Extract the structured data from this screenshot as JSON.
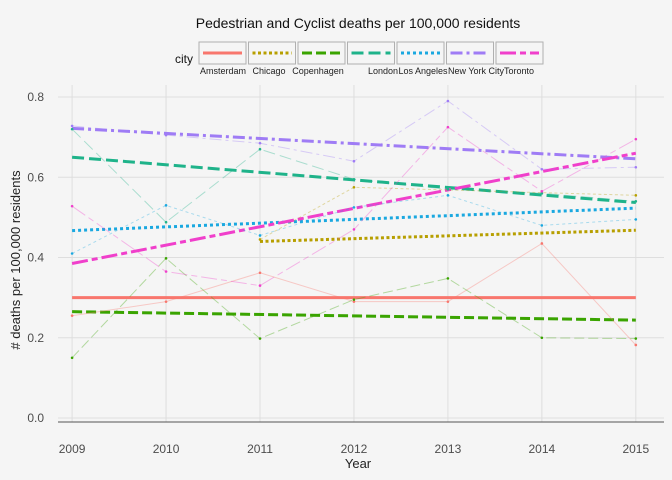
{
  "chart_data": {
    "type": "line",
    "title": "Pedestrian and Cyclist deaths per 100,000 residents",
    "xlabel": "Year",
    "ylabel": "# deaths per 100,000 residents",
    "xlim": [
      2008.85,
      2015.3
    ],
    "ylim": [
      -0.01,
      0.83
    ],
    "x_ticks": [
      2009,
      2010,
      2011,
      2012,
      2013,
      2014,
      2015
    ],
    "y_ticks": [
      0.0,
      0.2,
      0.4,
      0.6,
      0.8
    ],
    "y_tick_labels": [
      "0.0",
      "0.2",
      "0.4",
      "0.6",
      "0.8"
    ],
    "grid": true,
    "legend": {
      "title": "city",
      "placement": "top"
    },
    "series": [
      {
        "name": "Amsterdam",
        "color": "#F8766D",
        "dash": "solid",
        "points": [
          [
            2009,
            0.255
          ],
          [
            2010,
            0.29
          ],
          [
            2011,
            0.362
          ],
          [
            2012,
            0.29
          ],
          [
            2013,
            0.29
          ],
          [
            2014,
            0.435
          ],
          [
            2015,
            0.182
          ]
        ],
        "trend": [
          [
            2009,
            0.3
          ],
          [
            2015,
            0.3
          ]
        ]
      },
      {
        "name": "Chicago",
        "color": "#B79F00",
        "dash": "dotted",
        "points": [
          [
            2011,
            0.445
          ],
          [
            2012,
            0.575
          ],
          [
            2015,
            0.555
          ]
        ],
        "trend": [
          [
            2011,
            0.44
          ],
          [
            2015,
            0.468
          ]
        ]
      },
      {
        "name": "Copenhagen",
        "color": "#3AA400",
        "dash": "dashed",
        "points": [
          [
            2009,
            0.15
          ],
          [
            2010,
            0.398
          ],
          [
            2011,
            0.198
          ],
          [
            2012,
            0.295
          ],
          [
            2013,
            0.348
          ],
          [
            2014,
            0.2
          ],
          [
            2015,
            0.198
          ]
        ],
        "trend": [
          [
            2009,
            0.265
          ],
          [
            2015,
            0.244
          ]
        ]
      },
      {
        "name": "London",
        "color": "#1FB38A",
        "dash": "longdash",
        "points": [
          [
            2009,
            0.72
          ],
          [
            2010,
            0.488
          ],
          [
            2011,
            0.67
          ],
          [
            2012,
            0.595
          ],
          [
            2013,
            0.57
          ],
          [
            2014,
            0.56
          ],
          [
            2015,
            0.54
          ]
        ],
        "trend": [
          [
            2009,
            0.65
          ],
          [
            2015,
            0.537
          ]
        ]
      },
      {
        "name": "Los Angeles",
        "color": "#1AA8E0",
        "dash": "dotted2",
        "points": [
          [
            2009,
            0.41
          ],
          [
            2010,
            0.53
          ],
          [
            2011,
            0.455
          ],
          [
            2012,
            0.525
          ],
          [
            2013,
            0.555
          ],
          [
            2014,
            0.48
          ],
          [
            2015,
            0.495
          ]
        ],
        "trend": [
          [
            2009,
            0.467
          ],
          [
            2015,
            0.523
          ]
        ]
      },
      {
        "name": "New York City",
        "color": "#9F7CF5",
        "dash": "dotdash",
        "points": [
          [
            2009,
            0.728
          ],
          [
            2010,
            0.705
          ],
          [
            2011,
            0.685
          ],
          [
            2012,
            0.64
          ],
          [
            2013,
            0.79
          ],
          [
            2014,
            0.62
          ],
          [
            2015,
            0.625
          ]
        ],
        "trend": [
          [
            2009,
            0.722
          ],
          [
            2015,
            0.646
          ]
        ]
      },
      {
        "name": "Toronto",
        "color": "#F03FCB",
        "dash": "twodash",
        "points": [
          [
            2009,
            0.528
          ],
          [
            2010,
            0.365
          ],
          [
            2011,
            0.33
          ],
          [
            2012,
            0.47
          ],
          [
            2013,
            0.725
          ],
          [
            2014,
            0.565
          ],
          [
            2015,
            0.695
          ]
        ],
        "trend": [
          [
            2009,
            0.385
          ],
          [
            2015,
            0.66
          ]
        ]
      }
    ]
  }
}
